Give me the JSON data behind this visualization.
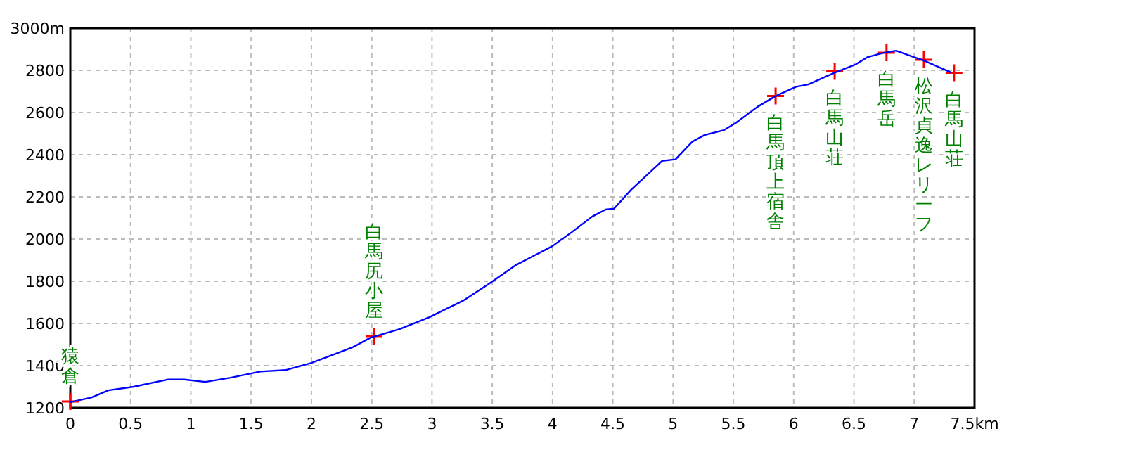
{
  "chart_data": {
    "type": "line",
    "xlim": [
      0,
      7.5
    ],
    "ylim": [
      1200,
      3000
    ],
    "xticks": [
      0,
      0.5,
      1,
      1.5,
      2,
      2.5,
      3,
      3.5,
      4,
      4.5,
      5,
      5.5,
      6,
      6.5,
      7,
      {
        "value": 7.5,
        "label": "7.5km"
      }
    ],
    "yticks": [
      1200,
      1400,
      1600,
      1800,
      2000,
      2200,
      2400,
      2600,
      2800,
      {
        "value": 3000,
        "label": "3000m"
      }
    ],
    "grid": true,
    "series": [
      {
        "color": "#0000ff",
        "x": [
          0,
          0.175,
          0.315,
          0.525,
          0.805,
          0.945,
          1.12,
          1.33,
          1.575,
          1.785,
          1.995,
          2.205,
          2.345,
          2.492,
          2.73,
          2.975,
          3.255,
          3.465,
          3.7,
          4.0,
          4.16,
          4.33,
          4.44,
          4.51,
          4.65,
          4.91,
          5.02,
          5.16,
          5.26,
          5.42,
          5.52,
          5.7,
          5.85,
          6.02,
          6.12,
          6.34,
          6.51,
          6.61,
          6.74,
          6.85,
          7.0,
          7.07,
          7.31
        ],
        "values": [
          1227,
          1249,
          1283,
          1300,
          1334,
          1334,
          1323,
          1343,
          1372,
          1379,
          1412,
          1457,
          1488,
          1533,
          1573,
          1629,
          1707,
          1785,
          1878,
          1967,
          2033,
          2107,
          2140,
          2144,
          2233,
          2371,
          2378,
          2462,
          2493,
          2516,
          2551,
          2627,
          2678,
          2722,
          2733,
          2789,
          2827,
          2862,
          2882,
          2893,
          2862,
          2849,
          2789
        ]
      },
      {
        "type": "scatter",
        "color": "#ff0000",
        "marker": "cross",
        "x": [
          0,
          2.52,
          5.85,
          6.34,
          6.77,
          7.08,
          7.33
        ],
        "values": [
          1230,
          1540,
          2678,
          2795,
          2883,
          2850,
          2788
        ]
      }
    ],
    "annotations": [
      {
        "text": "猿倉",
        "x": 0,
        "y": 1230
      },
      {
        "text": "白馬尻小屋",
        "x": 2.52,
        "y": 1540
      },
      {
        "text": "白馬頂上宿舎",
        "x": 5.85,
        "y": 2678
      },
      {
        "text": "白馬山荘",
        "x": 6.34,
        "y": 2795
      },
      {
        "text": "白馬岳",
        "x": 6.77,
        "y": 2883
      },
      {
        "text": "松沢貞逸レリーフ",
        "x": 7.08,
        "y": 2850
      },
      {
        "text": "白馬山荘",
        "x": 7.33,
        "y": 2788
      }
    ]
  }
}
